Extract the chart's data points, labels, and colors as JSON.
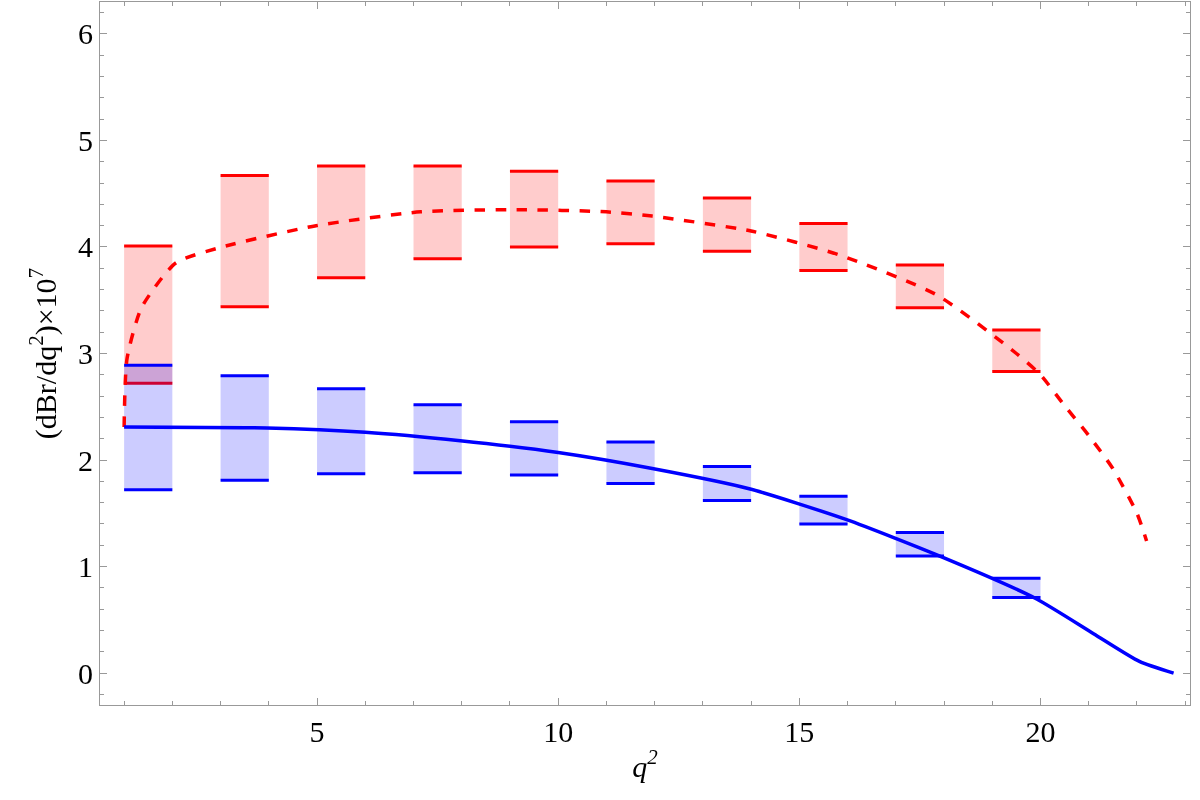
{
  "chart_data": {
    "type": "bar",
    "xlabel": "q$^{2}$",
    "ylabel": "(dBr/dq$^{2}$)×10$^{7}$",
    "xlim": [
      0.5,
      23.1
    ],
    "xticks": [
      5,
      10,
      15,
      20
    ],
    "ylim": [
      -0.3,
      6.3
    ],
    "yticks": [
      0,
      1,
      2,
      3,
      4,
      5,
      6
    ],
    "grid": false,
    "series": [
      {
        "color": "#ff0000",
        "x": [
          1.5,
          3.5,
          5.5,
          7.5,
          9.5,
          11.5,
          13.5,
          15.5,
          17.5,
          19.5
        ],
        "base": [
          2.72,
          3.44,
          3.71,
          3.89,
          4.0,
          4.03,
          3.96,
          3.78,
          3.43,
          2.83
        ],
        "values": [
          1.29,
          1.23,
          1.05,
          0.87,
          0.71,
          0.59,
          0.5,
          0.44,
          0.4,
          0.39
        ]
      },
      {
        "color": "#0000ff",
        "x": [
          1.5,
          3.5,
          5.5,
          7.5,
          9.5,
          11.5,
          13.5,
          15.5,
          17.5,
          19.5
        ],
        "base": [
          1.72,
          1.81,
          1.87,
          1.88,
          1.86,
          1.78,
          1.62,
          1.4,
          1.1,
          0.71
        ],
        "values": [
          1.17,
          0.98,
          0.8,
          0.64,
          0.5,
          0.39,
          0.32,
          0.26,
          0.22,
          0.18
        ]
      },
      {
        "type": "line",
        "color": "#ff0000",
        "line_style": "dashed",
        "x": [
          1.0,
          1.06,
          1.36,
          2.07,
          3.03,
          4.98,
          7.15,
          9.2,
          11.0,
          11.95,
          14.0,
          15.8,
          17.85,
          19.5,
          20.0,
          20.5,
          21.0,
          21.5,
          22.0,
          22.2
        ],
        "values": [
          2.31,
          2.95,
          3.43,
          3.85,
          4.0,
          4.2,
          4.33,
          4.35,
          4.33,
          4.29,
          4.15,
          3.93,
          3.55,
          3.0,
          2.8,
          2.51,
          2.23,
          1.92,
          1.5,
          1.24
        ]
      },
      {
        "type": "line",
        "color": "#0000ff",
        "line_style": "solid",
        "x": [
          1.0,
          3.96,
          6.0,
          7.97,
          10.0,
          11.95,
          13.96,
          15.98,
          17.9,
          19.9,
          21.1,
          22.05,
          22.76
        ],
        "values": [
          2.31,
          2.3,
          2.26,
          2.18,
          2.07,
          1.92,
          1.73,
          1.44,
          1.1,
          0.7,
          0.37,
          0.11,
          0.0
        ]
      }
    ]
  }
}
